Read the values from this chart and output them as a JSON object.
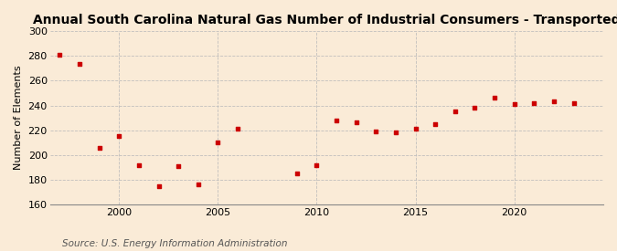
{
  "title": "Annual South Carolina Natural Gas Number of Industrial Consumers - Transported",
  "ylabel": "Number of Elements",
  "source": "Source: U.S. Energy Information Administration",
  "years": [
    1997,
    1998,
    1999,
    2000,
    2001,
    2002,
    2003,
    2004,
    2005,
    2006,
    2009,
    2010,
    2011,
    2012,
    2013,
    2014,
    2015,
    2016,
    2017,
    2018,
    2019,
    2020,
    2021,
    2022,
    2023
  ],
  "values": [
    281,
    274,
    206,
    215,
    192,
    175,
    191,
    176,
    210,
    221,
    185,
    192,
    228,
    226,
    219,
    218,
    221,
    225,
    235,
    238,
    246,
    241,
    242,
    243,
    242
  ],
  "marker_color": "#cc0000",
  "bg_color": "#faebd7",
  "grid_color": "#bbbbbb",
  "xlim": [
    1996.5,
    2024.5
  ],
  "ylim": [
    160,
    300
  ],
  "yticks": [
    160,
    180,
    200,
    220,
    240,
    260,
    280,
    300
  ],
  "xticks": [
    2000,
    2005,
    2010,
    2015,
    2020
  ],
  "title_fontsize": 10,
  "label_fontsize": 8,
  "tick_fontsize": 8,
  "source_fontsize": 7.5,
  "marker_size": 12
}
